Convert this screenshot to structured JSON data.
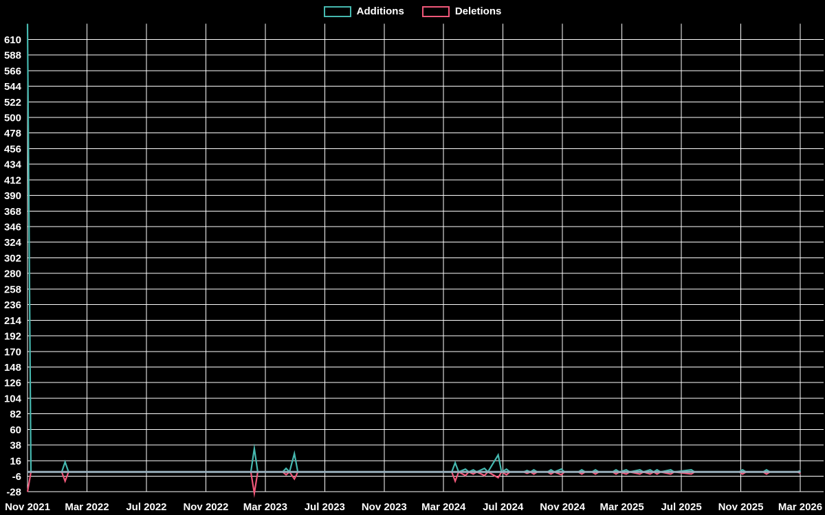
{
  "legend": {
    "items": [
      {
        "label": "Additions",
        "color": "#46b9b0"
      },
      {
        "label": "Deletions",
        "color": "#f1587a"
      }
    ]
  },
  "colors": {
    "background": "#000000",
    "grid": "#ffffff",
    "text": "#ffffff",
    "additions": "#46b9b0",
    "deletions": "#f1587a",
    "zero_line": "#97aebb"
  },
  "chart_data": {
    "type": "line",
    "title": "",
    "xlabel": "",
    "ylabel": "",
    "legend_position": "top-center",
    "grid": true,
    "x_start": "2021-11-01",
    "x_end": "2026-03-01",
    "x_tick_labels": [
      "Nov 2021",
      "Mar 2022",
      "Jul 2022",
      "Nov 2022",
      "Mar 2023",
      "Jul 2023",
      "Nov 2023",
      "Mar 2024",
      "Jul 2024",
      "Nov 2024",
      "Mar 2025",
      "Jul 2025",
      "Nov 2025",
      "Mar 2026"
    ],
    "y_ticks": [
      610,
      588,
      566,
      544,
      522,
      500,
      478,
      456,
      434,
      412,
      390,
      368,
      346,
      324,
      302,
      280,
      258,
      236,
      214,
      192,
      170,
      148,
      126,
      104,
      82,
      60,
      38,
      16,
      -6,
      -28
    ],
    "ylim": [
      -30,
      632
    ],
    "series_names": [
      "Additions",
      "Deletions"
    ],
    "points_format": [
      "date",
      "additions",
      "deletions"
    ],
    "points": [
      [
        "2021-11-01",
        632,
        -28
      ],
      [
        "2021-11-08",
        0,
        0
      ],
      [
        "2022-01-10",
        0,
        0
      ],
      [
        "2022-01-17",
        14,
        -13
      ],
      [
        "2022-01-24",
        0,
        0
      ],
      [
        "2023-02-01",
        0,
        0
      ],
      [
        "2023-02-08",
        33,
        -30
      ],
      [
        "2023-02-15",
        0,
        0
      ],
      [
        "2023-04-07",
        0,
        0
      ],
      [
        "2023-04-14",
        5,
        -4
      ],
      [
        "2023-04-21",
        0,
        0
      ],
      [
        "2023-05-01",
        26,
        -10
      ],
      [
        "2023-05-08",
        0,
        0
      ],
      [
        "2024-03-18",
        0,
        0
      ],
      [
        "2024-03-25",
        13,
        -13
      ],
      [
        "2024-04-01",
        0,
        0
      ],
      [
        "2024-04-15",
        4,
        -5
      ],
      [
        "2024-04-22",
        0,
        0
      ],
      [
        "2024-05-01",
        3,
        -3
      ],
      [
        "2024-05-08",
        0,
        0
      ],
      [
        "2024-05-24",
        5,
        -5
      ],
      [
        "2024-05-31",
        0,
        0
      ],
      [
        "2024-06-21",
        24,
        -8
      ],
      [
        "2024-06-28",
        0,
        0
      ],
      [
        "2024-07-08",
        4,
        -4
      ],
      [
        "2024-07-15",
        0,
        0
      ],
      [
        "2024-08-12",
        0,
        0
      ],
      [
        "2024-08-19",
        2,
        -2
      ],
      [
        "2024-08-26",
        0,
        0
      ],
      [
        "2024-09-02",
        3,
        -3
      ],
      [
        "2024-09-09",
        0,
        0
      ],
      [
        "2024-09-30",
        0,
        0
      ],
      [
        "2024-10-07",
        3,
        -3
      ],
      [
        "2024-10-14",
        0,
        0
      ],
      [
        "2024-10-28",
        4,
        -4
      ],
      [
        "2024-11-04",
        0,
        0
      ],
      [
        "2024-12-02",
        0,
        0
      ],
      [
        "2024-12-09",
        3,
        -3
      ],
      [
        "2024-12-16",
        0,
        0
      ],
      [
        "2024-12-30",
        0,
        0
      ],
      [
        "2025-01-06",
        3,
        -3
      ],
      [
        "2025-01-13",
        0,
        0
      ],
      [
        "2025-02-10",
        0,
        0
      ],
      [
        "2025-02-17",
        3,
        -3
      ],
      [
        "2025-02-24",
        0,
        0
      ],
      [
        "2025-03-10",
        3,
        -3
      ],
      [
        "2025-03-17",
        0,
        0
      ],
      [
        "2025-04-07",
        3,
        -3
      ],
      [
        "2025-04-14",
        0,
        0
      ],
      [
        "2025-04-28",
        3,
        -3
      ],
      [
        "2025-05-05",
        0,
        0
      ],
      [
        "2025-05-12",
        3,
        -3
      ],
      [
        "2025-05-19",
        0,
        0
      ],
      [
        "2025-06-09",
        3,
        -3
      ],
      [
        "2025-06-16",
        0,
        0
      ],
      [
        "2025-07-21",
        3,
        -3
      ],
      [
        "2025-07-28",
        0,
        0
      ],
      [
        "2025-10-27",
        0,
        0
      ],
      [
        "2025-11-03",
        3,
        -3
      ],
      [
        "2025-11-10",
        0,
        0
      ],
      [
        "2025-12-15",
        0,
        0
      ],
      [
        "2025-12-22",
        3,
        -3
      ],
      [
        "2025-12-29",
        0,
        0
      ],
      [
        "2026-02-23",
        0,
        0
      ],
      [
        "2026-03-02",
        2,
        -2
      ]
    ]
  }
}
